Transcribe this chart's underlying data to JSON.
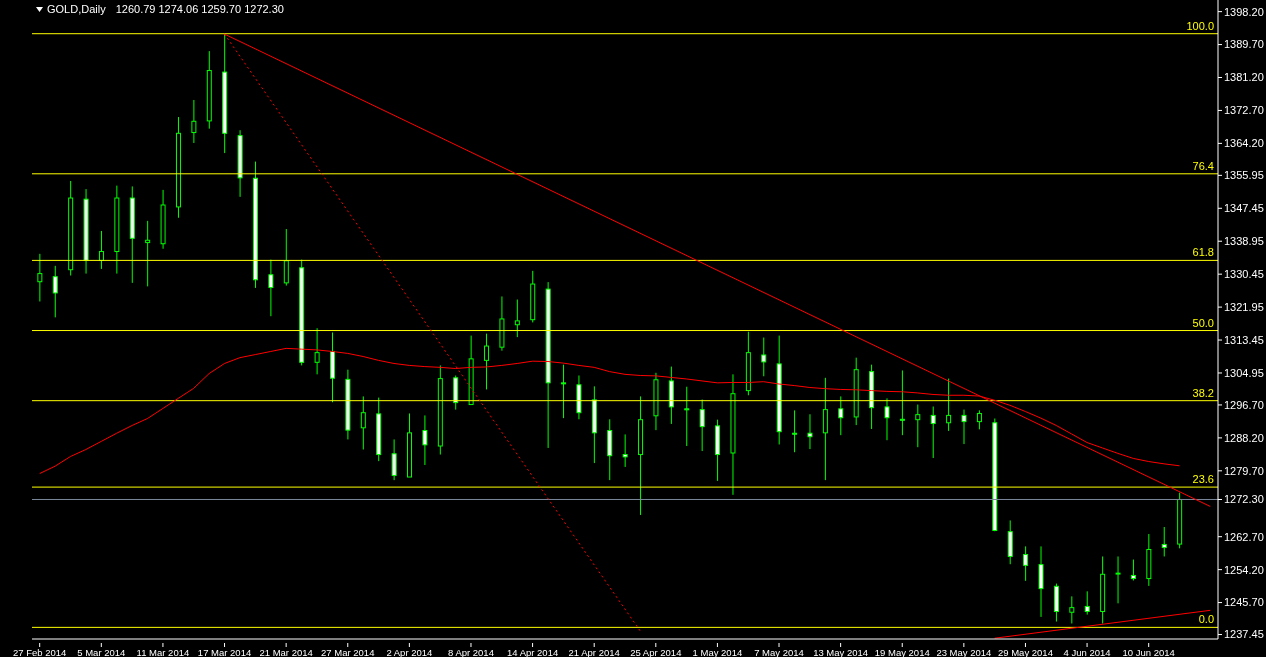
{
  "chart_data": {
    "type": "candlestick",
    "title": "GOLD,Daily",
    "subtitle": "1260.79 1274.06 1259.70 1272.30",
    "categories": [
      "27 Feb 2014",
      null,
      null,
      null,
      "5 Mar 2014",
      null,
      null,
      null,
      "11 Mar 2014",
      null,
      null,
      null,
      "17 Mar 2014",
      null,
      null,
      null,
      "21 Mar 2014",
      null,
      null,
      null,
      "27 Mar 2014",
      null,
      null,
      null,
      "2 Apr 2014",
      null,
      null,
      null,
      "8 Apr 2014",
      null,
      null,
      null,
      "14 Apr 2014",
      null,
      null,
      null,
      "21 Apr 2014",
      null,
      null,
      null,
      "25 Apr 2014",
      null,
      null,
      null,
      "1 May 2014",
      null,
      null,
      null,
      "7 May 2014",
      null,
      null,
      null,
      "13 May 2014",
      null,
      null,
      null,
      "19 May 2014",
      null,
      null,
      null,
      "23 May 2014",
      null,
      null,
      null,
      "29 May 2014",
      null,
      null,
      null,
      "4 Jun 2014",
      null,
      null,
      null,
      "10 Jun 2014",
      null,
      null,
      null,
      null
    ],
    "ohlc": [
      [
        1328.5,
        1335.7,
        1323.4,
        1330.6
      ],
      [
        1329.8,
        1332.6,
        1319.3,
        1325.6
      ],
      [
        1331.6,
        1354.5,
        1330.1,
        1350.1
      ],
      [
        1349.8,
        1352.4,
        1330.6,
        1334.0
      ],
      [
        1334.0,
        1341.6,
        1331.8,
        1336.3
      ],
      [
        1336.3,
        1353.3,
        1330.6,
        1350.1
      ],
      [
        1350.1,
        1353.1,
        1328.2,
        1339.7
      ],
      [
        1338.6,
        1344.2,
        1327.3,
        1339.2
      ],
      [
        1338.3,
        1352.2,
        1337.0,
        1348.3
      ],
      [
        1347.8,
        1371.0,
        1345.0,
        1366.8
      ],
      [
        1367.0,
        1375.4,
        1364.3,
        1369.9
      ],
      [
        1370.0,
        1388.0,
        1368.0,
        1383.0
      ],
      [
        1382.6,
        1392.4,
        1361.7,
        1366.8
      ],
      [
        1366.2,
        1367.6,
        1350.4,
        1355.3
      ],
      [
        1355.2,
        1359.5,
        1326.9,
        1329.0
      ],
      [
        1330.3,
        1334.2,
        1319.6,
        1327.0
      ],
      [
        1328.2,
        1342.1,
        1327.5,
        1333.9
      ],
      [
        1332.1,
        1334.2,
        1306.9,
        1307.7
      ],
      [
        1307.7,
        1316.5,
        1304.6,
        1310.2
      ],
      [
        1310.5,
        1315.4,
        1297.4,
        1303.6
      ],
      [
        1303.3,
        1305.8,
        1287.8,
        1290.2
      ],
      [
        1290.8,
        1298.9,
        1285.2,
        1294.7
      ],
      [
        1294.4,
        1298.6,
        1282.2,
        1283.9
      ],
      [
        1284.1,
        1287.8,
        1277.3,
        1278.5
      ],
      [
        1278.1,
        1294.5,
        1278.1,
        1289.5
      ],
      [
        1290.1,
        1294.0,
        1281.2,
        1286.4
      ],
      [
        1286.1,
        1306.9,
        1283.9,
        1303.5
      ],
      [
        1303.7,
        1304.3,
        1295.5,
        1297.3
      ],
      [
        1296.8,
        1314.6,
        1296.8,
        1308.6
      ],
      [
        1308.2,
        1315.1,
        1300.7,
        1311.9
      ],
      [
        1311.6,
        1324.7,
        1310.7,
        1318.9
      ],
      [
        1317.4,
        1323.9,
        1314.2,
        1318.4
      ],
      [
        1318.7,
        1331.3,
        1318.0,
        1327.9
      ],
      [
        1326.6,
        1328.4,
        1285.6,
        1302.4
      ],
      [
        1302.4,
        1307.1,
        1293.3,
        1302.2
      ],
      [
        1301.9,
        1304.3,
        1293.0,
        1294.7
      ],
      [
        1298.0,
        1301.5,
        1281.7,
        1289.5
      ],
      [
        1290.1,
        1293.0,
        1277.3,
        1283.6
      ],
      [
        1283.9,
        1289.1,
        1280.7,
        1283.3
      ],
      [
        1283.9,
        1298.9,
        1268.3,
        1292.9
      ],
      [
        1293.9,
        1305.0,
        1290.2,
        1303.2
      ],
      [
        1302.9,
        1306.6,
        1291.8,
        1296.2
      ],
      [
        1295.7,
        1301.4,
        1286.1,
        1295.5
      ],
      [
        1295.5,
        1298.1,
        1284.8,
        1291.1
      ],
      [
        1291.3,
        1292.9,
        1277.1,
        1283.9
      ],
      [
        1284.3,
        1304.6,
        1273.5,
        1299.6
      ],
      [
        1300.4,
        1315.6,
        1299.2,
        1310.2
      ],
      [
        1309.6,
        1314.1,
        1304.1,
        1307.8
      ],
      [
        1307.3,
        1314.6,
        1286.5,
        1289.8
      ],
      [
        1289.4,
        1295.3,
        1284.5,
        1289.2
      ],
      [
        1289.4,
        1294.3,
        1285.3,
        1288.5
      ],
      [
        1289.5,
        1303.7,
        1277.3,
        1295.5
      ],
      [
        1295.7,
        1298.9,
        1288.9,
        1293.4
      ],
      [
        1293.6,
        1308.9,
        1291.5,
        1305.8
      ],
      [
        1305.3,
        1307.1,
        1290.5,
        1296.0
      ],
      [
        1296.2,
        1298.4,
        1287.6,
        1293.4
      ],
      [
        1293.0,
        1305.6,
        1288.9,
        1292.8
      ],
      [
        1292.9,
        1296.8,
        1285.8,
        1294.2
      ],
      [
        1294.0,
        1296.3,
        1283.0,
        1291.9
      ],
      [
        1292.1,
        1303.5,
        1290.0,
        1294.0
      ],
      [
        1294.0,
        1295.5,
        1286.6,
        1292.4
      ],
      [
        1292.4,
        1295.3,
        1290.4,
        1294.5
      ],
      [
        1292.1,
        1293.2,
        1264.1,
        1264.3
      ],
      [
        1264.0,
        1266.9,
        1255.6,
        1257.6
      ],
      [
        1258.1,
        1260.2,
        1251.3,
        1255.3
      ],
      [
        1255.5,
        1260.2,
        1242.0,
        1249.3
      ],
      [
        1249.9,
        1250.6,
        1240.8,
        1243.4
      ],
      [
        1243.2,
        1247.3,
        1240.3,
        1244.4
      ],
      [
        1244.7,
        1248.6,
        1242.6,
        1243.4
      ],
      [
        1243.4,
        1257.6,
        1240.3,
        1253.0
      ],
      [
        1253.1,
        1257.6,
        1245.5,
        1253.3
      ],
      [
        1252.7,
        1256.8,
        1251.4,
        1251.9
      ],
      [
        1251.9,
        1263.4,
        1250.0,
        1259.4
      ],
      [
        1260.7,
        1265.2,
        1257.6,
        1259.9
      ],
      [
        1260.79,
        1274.06,
        1259.7,
        1272.3
      ],
      null,
      null
    ],
    "series": [
      {
        "type": "line",
        "color": "#ff0000",
        "values": [
          1279.0,
          1280.9,
          1283.4,
          1285.2,
          1287.3,
          1289.4,
          1291.4,
          1293.2,
          1295.8,
          1298.4,
          1301.0,
          1304.8,
          1307.4,
          1308.9,
          1309.7,
          1310.5,
          1311.3,
          1311.1,
          1310.9,
          1310.5,
          1310.0,
          1309.2,
          1308.2,
          1307.4,
          1306.9,
          1306.6,
          1306.4,
          1306.1,
          1306.4,
          1306.5,
          1306.9,
          1307.4,
          1308.0,
          1307.9,
          1307.5,
          1306.9,
          1306.4,
          1305.3,
          1304.6,
          1304.3,
          1304.2,
          1303.8,
          1303.4,
          1302.9,
          1302.4,
          1302.5,
          1302.5,
          1302.7,
          1302.1,
          1301.7,
          1301.2,
          1300.9,
          1300.7,
          1300.6,
          1300.4,
          1300.2,
          1300.1,
          1299.8,
          1299.4,
          1299.2,
          1299.2,
          1299.0,
          1297.9,
          1296.6,
          1295.0,
          1293.3,
          1291.4,
          1289.2,
          1287.0,
          1285.6,
          1284.2,
          1282.9,
          1282.1,
          1281.5,
          1281.0,
          null,
          null
        ]
      },
      {
        "type": "line",
        "color": "#ff0000",
        "values": [
          null,
          null,
          null,
          null,
          null,
          null,
          null,
          null,
          null,
          null,
          null,
          null,
          1392.4,
          null,
          null,
          null,
          null,
          null,
          null,
          null,
          null,
          null,
          null,
          null,
          null,
          null,
          null,
          null,
          null,
          null,
          null,
          null,
          null,
          null,
          null,
          null,
          null,
          null,
          null,
          null,
          null,
          null,
          null,
          null,
          null,
          null,
          null,
          null,
          null,
          null,
          null,
          null,
          null,
          null,
          null,
          null,
          null,
          null,
          null,
          null,
          null,
          null,
          null,
          null,
          null,
          null,
          null,
          null,
          null,
          null,
          null,
          null,
          null,
          null,
          null,
          null,
          1270.5
        ]
      },
      {
        "type": "line",
        "color": "#ff0000",
        "values": [
          null,
          null,
          null,
          null,
          null,
          null,
          null,
          null,
          null,
          null,
          null,
          null,
          null,
          null,
          null,
          null,
          null,
          null,
          null,
          null,
          null,
          null,
          null,
          null,
          null,
          null,
          null,
          null,
          null,
          null,
          null,
          null,
          null,
          null,
          null,
          null,
          null,
          null,
          null,
          null,
          null,
          null,
          null,
          null,
          null,
          null,
          null,
          null,
          null,
          null,
          null,
          null,
          null,
          null,
          null,
          null,
          null,
          null,
          null,
          null,
          null,
          null,
          1236.5,
          null,
          null,
          null,
          null,
          null,
          null,
          null,
          null,
          null,
          null,
          null,
          null,
          null,
          1243.7
        ]
      },
      {
        "type": "line",
        "color": "#ff0000",
        "line_style": "dotted",
        "values": [
          null,
          null,
          null,
          null,
          null,
          null,
          null,
          null,
          null,
          null,
          null,
          null,
          1392.4,
          null,
          null,
          null,
          null,
          null,
          null,
          null,
          null,
          null,
          null,
          null,
          null,
          null,
          null,
          null,
          null,
          null,
          null,
          null,
          null,
          null,
          null,
          null,
          null,
          null,
          null,
          1238.3,
          null,
          null,
          null,
          null,
          null,
          null,
          null,
          null,
          null,
          null,
          null,
          null,
          null,
          null,
          null,
          null,
          null,
          null,
          null,
          null,
          null,
          null,
          null,
          null,
          null,
          null,
          null,
          null,
          null,
          null,
          null,
          null,
          null,
          null,
          null,
          null,
          null
        ]
      }
    ],
    "ylim": [
      1236.3,
      1401.2
    ],
    "yticks": [
      {
        "value": 1398.2,
        "label": "1398.20"
      },
      {
        "value": 1389.7,
        "label": "1389.70"
      },
      {
        "value": 1381.2,
        "label": "1381.20"
      },
      {
        "value": 1372.7,
        "label": "1372.70"
      },
      {
        "value": 1364.2,
        "label": "1364.20"
      },
      1355.95,
      1347.45,
      1338.95,
      1330.45,
      1321.95,
      1313.45,
      1304.95,
      {
        "value": 1296.7,
        "label": "1296.70"
      },
      {
        "value": 1288.2,
        "label": "1288.20"
      },
      {
        "value": 1279.7,
        "label": "1279.70"
      },
      {
        "value": 1272.3,
        "label": "1272.30"
      },
      {
        "value": 1262.7,
        "label": "1262.70"
      },
      {
        "value": 1254.2,
        "label": "1254.20"
      },
      {
        "value": 1245.7,
        "label": "1245.70"
      },
      1237.45
    ],
    "ref_lines": [
      {
        "axis": "y",
        "value": 1392.5,
        "color": "#ffff00"
      },
      {
        "axis": "y",
        "value": 1356.35,
        "color": "#ffff00"
      },
      {
        "axis": "y",
        "value": 1334.0,
        "color": "#ffff00"
      },
      {
        "axis": "y",
        "value": 1315.9,
        "color": "#ffff00"
      },
      {
        "axis": "y",
        "value": 1297.8,
        "color": "#ffff00"
      },
      {
        "axis": "y",
        "value": 1275.5,
        "color": "#ffff00"
      },
      {
        "axis": "y",
        "value": 1239.3,
        "color": "#ffff00"
      },
      {
        "axis": "y",
        "value": 1272.3,
        "color": "#7a8699"
      }
    ],
    "annotations": [
      {
        "text": "100.0",
        "y": 1392.5
      },
      {
        "text": "76.4",
        "y": 1356.35
      },
      {
        "text": "61.8",
        "y": 1334.0
      },
      {
        "text": "50.0",
        "y": 1315.9
      },
      {
        "text": "38.2",
        "y": 1297.8
      },
      {
        "text": "23.6",
        "y": 1275.5
      },
      {
        "text": "0.0",
        "y": 1239.3
      }
    ]
  }
}
